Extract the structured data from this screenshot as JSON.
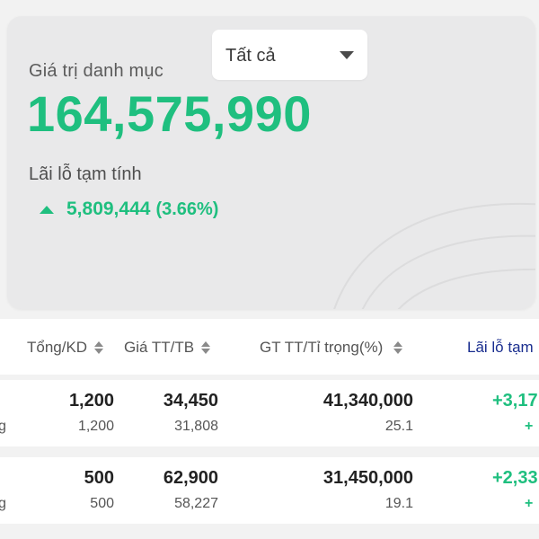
{
  "portfolio": {
    "title": "Giá trị danh mục",
    "filter_value": "Tất cả",
    "total_value": "164,575,990",
    "pl_label": "Lãi lỗ tạm tính",
    "pl_value": "5,809,444",
    "pl_percent": "(3.66%)"
  },
  "table": {
    "headers": {
      "total_kd": "Tổng/KD",
      "price": "Giá TT/TB",
      "value_weight": "GT TT/Tỉ trọng(%)",
      "pl": "Lãi lỗ tạm"
    },
    "rows": [
      {
        "left_fragment": "g",
        "total": "1,200",
        "kd": "1,200",
        "price_tt": "34,450",
        "price_tb": "31,808",
        "gt_tt": "41,340,000",
        "weight": "25.1",
        "pl": "+3,17",
        "pl_sub": "+"
      },
      {
        "left_fragment": "g",
        "total": "500",
        "kd": "500",
        "price_tt": "62,900",
        "price_tb": "58,227",
        "gt_tt": "31,450,000",
        "weight": "19.1",
        "pl": "+2,33",
        "pl_sub": "+"
      }
    ]
  },
  "colors": {
    "positive": "#1fbf7f",
    "accent_header": "#1a2e8f"
  }
}
